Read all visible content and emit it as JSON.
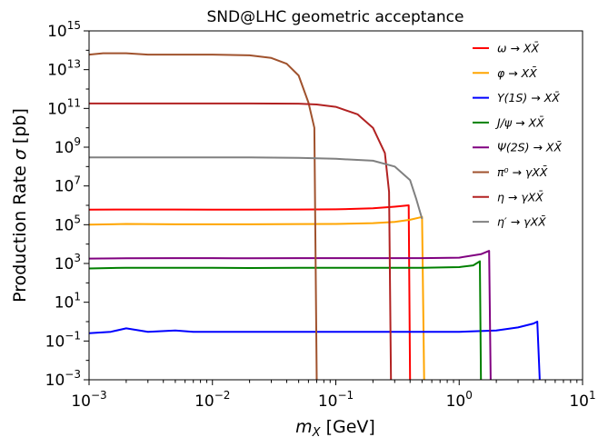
{
  "chart_data": {
    "type": "line",
    "title": "SND@LHC geometric acceptance",
    "xlabel": "m_X [GeV]",
    "ylabel": "Production Rate σ [pb]",
    "xscale": "log",
    "yscale": "log",
    "xlim": [
      0.001,
      10
    ],
    "ylim": [
      0.001,
      1000000000000000.0
    ],
    "x_ticks": [
      {
        "base": "10",
        "exp": "−3",
        "value": 0.001
      },
      {
        "base": "10",
        "exp": "−2",
        "value": 0.01
      },
      {
        "base": "10",
        "exp": "−1",
        "value": 0.1
      },
      {
        "base": "10",
        "exp": "0",
        "value": 1
      },
      {
        "base": "10",
        "exp": "1",
        "value": 10
      }
    ],
    "y_ticks": [
      {
        "base": "10",
        "exp": "−3",
        "value": 0.001
      },
      {
        "base": "10",
        "exp": "−1",
        "value": 0.1
      },
      {
        "base": "10",
        "exp": "1",
        "value": 10
      },
      {
        "base": "10",
        "exp": "3",
        "value": 1000
      },
      {
        "base": "10",
        "exp": "5",
        "value": 100000
      },
      {
        "base": "10",
        "exp": "7",
        "value": 10000000
      },
      {
        "base": "10",
        "exp": "9",
        "value": 1000000000
      },
      {
        "base": "10",
        "exp": "11",
        "value": 100000000000
      },
      {
        "base": "10",
        "exp": "13",
        "value": 10000000000000
      },
      {
        "base": "10",
        "exp": "15",
        "value": 1000000000000000
      }
    ],
    "grid": false,
    "legend_position": "top-right",
    "series": [
      {
        "name": "ω → XX̄",
        "color": "#ff0000",
        "x": [
          0.001,
          0.002,
          0.005,
          0.01,
          0.02,
          0.05,
          0.1,
          0.2,
          0.3,
          0.39,
          0.4
        ],
        "y": [
          600000,
          610000,
          610000,
          600000,
          600000,
          610000,
          620000,
          700000,
          850000,
          1000000,
          0.001
        ]
      },
      {
        "name": "φ → XX̄",
        "color": "#ffa500",
        "x": [
          0.001,
          0.002,
          0.005,
          0.01,
          0.02,
          0.05,
          0.1,
          0.2,
          0.3,
          0.4,
          0.5,
          0.52
        ],
        "y": [
          100000,
          110000,
          105000,
          105000,
          105000,
          108000,
          110000,
          120000,
          140000,
          180000,
          250000,
          0.001
        ]
      },
      {
        "name": "Υ(1S) → XX̄",
        "color": "#0000ff",
        "x": [
          0.001,
          0.0015,
          0.002,
          0.003,
          0.005,
          0.007,
          0.01,
          0.02,
          0.05,
          0.1,
          0.2,
          0.5,
          1,
          2,
          3,
          4,
          4.3,
          4.5
        ],
        "y": [
          0.25,
          0.3,
          0.45,
          0.3,
          0.35,
          0.3,
          0.3,
          0.3,
          0.3,
          0.3,
          0.3,
          0.3,
          0.3,
          0.35,
          0.5,
          0.8,
          1.0,
          0.001
        ]
      },
      {
        "name": "J/ψ → XX̄",
        "color": "#008000",
        "x": [
          0.001,
          0.002,
          0.005,
          0.01,
          0.02,
          0.05,
          0.1,
          0.2,
          0.5,
          1,
          1.3,
          1.47,
          1.5
        ],
        "y": [
          550,
          600,
          600,
          600,
          580,
          600,
          600,
          600,
          600,
          650,
          800,
          1300,
          0.001
        ]
      },
      {
        "name": "Ψ(2S) → XX̄",
        "color": "#800080",
        "x": [
          0.001,
          0.002,
          0.005,
          0.01,
          0.02,
          0.05,
          0.1,
          0.2,
          0.5,
          1,
          1.5,
          1.75,
          1.8
        ],
        "y": [
          1800,
          1850,
          1900,
          1900,
          1850,
          1900,
          1900,
          1900,
          1900,
          2000,
          3000,
          4500,
          0.001
        ]
      },
      {
        "name": "π⁰ → γXX̄",
        "color": "#a0522d",
        "x": [
          0.001,
          0.0013,
          0.002,
          0.003,
          0.005,
          0.01,
          0.02,
          0.03,
          0.04,
          0.05,
          0.06,
          0.067,
          0.07
        ],
        "y": [
          60000000000000.0,
          70000000000000.0,
          70000000000000.0,
          60000000000000.0,
          60000000000000.0,
          60000000000000.0,
          55000000000000.0,
          40000000000000.0,
          20000000000000.0,
          5000000000000.0,
          200000000000.0,
          10000000000.0,
          0.001
        ]
      },
      {
        "name": "η → γXX̄",
        "color": "#b22222",
        "x": [
          0.001,
          0.002,
          0.005,
          0.01,
          0.02,
          0.05,
          0.07,
          0.1,
          0.15,
          0.2,
          0.25,
          0.27,
          0.28
        ],
        "y": [
          180000000000.0,
          180000000000.0,
          180000000000.0,
          180000000000.0,
          180000000000.0,
          175000000000.0,
          160000000000.0,
          120000000000.0,
          50000000000.0,
          10000000000.0,
          500000000.0,
          5000000.0,
          0.001
        ]
      },
      {
        "name": "η′ → γXX̄",
        "color": "#808080",
        "x": [
          0.001,
          0.002,
          0.005,
          0.01,
          0.02,
          0.05,
          0.1,
          0.2,
          0.3,
          0.4,
          0.45,
          0.5
        ],
        "y": [
          300000000.0,
          300000000.0,
          300000000.0,
          300000000.0,
          300000000.0,
          280000000.0,
          250000000.0,
          200000000.0,
          100000000.0,
          20000000.0,
          2000000.0,
          200000.0
        ]
      }
    ]
  }
}
